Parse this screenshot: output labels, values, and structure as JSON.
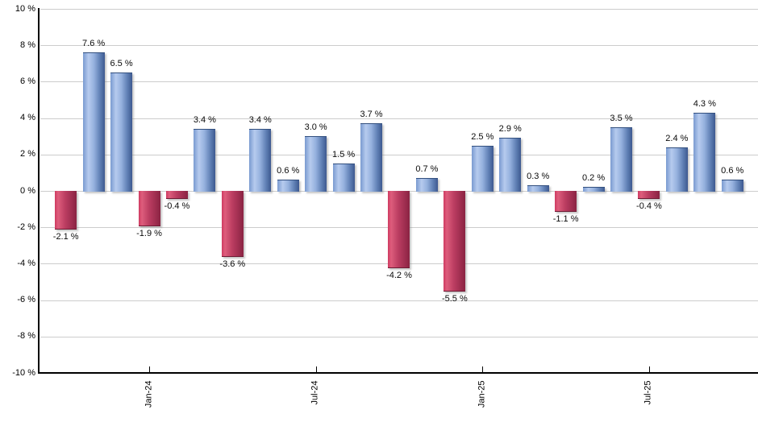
{
  "chart_data": {
    "type": "bar",
    "title": "",
    "xlabel": "",
    "ylabel": "",
    "ylim": [
      -10,
      10
    ],
    "y_tick_step": 2,
    "grid": "horizontal",
    "legend": null,
    "y_tick_labels": [
      "10 %",
      "8 %",
      "6 %",
      "4 %",
      "2 %",
      "0 %",
      "-2 %",
      "-4 %",
      "-6 %",
      "-8 %",
      "-10 %"
    ],
    "values": [
      -2.1,
      7.6,
      6.5,
      -1.9,
      -0.4,
      3.4,
      -3.6,
      3.4,
      0.6,
      3.0,
      1.5,
      3.7,
      -4.2,
      0.7,
      -5.5,
      2.5,
      2.9,
      0.3,
      -1.1,
      0.2,
      3.5,
      -0.4,
      2.4,
      4.3,
      0.6
    ],
    "value_label_suffix": " %",
    "x_ticks": [
      {
        "bar_index": 3,
        "label": "Jan-24"
      },
      {
        "bar_index": 9,
        "label": "Jul-24"
      },
      {
        "bar_index": 15,
        "label": "Jan-25"
      },
      {
        "bar_index": 21,
        "label": "Jul-25"
      }
    ],
    "colors": {
      "positive_bar": "#89a5d9",
      "positive_bar_dark": "#3d5990",
      "negative_bar": "#cf3a61",
      "negative_bar_dark": "#8a2343",
      "gridline": "#cccccc",
      "axis": "#000000",
      "label_text": "#0a0a0a",
      "background": "#ffffff"
    }
  }
}
